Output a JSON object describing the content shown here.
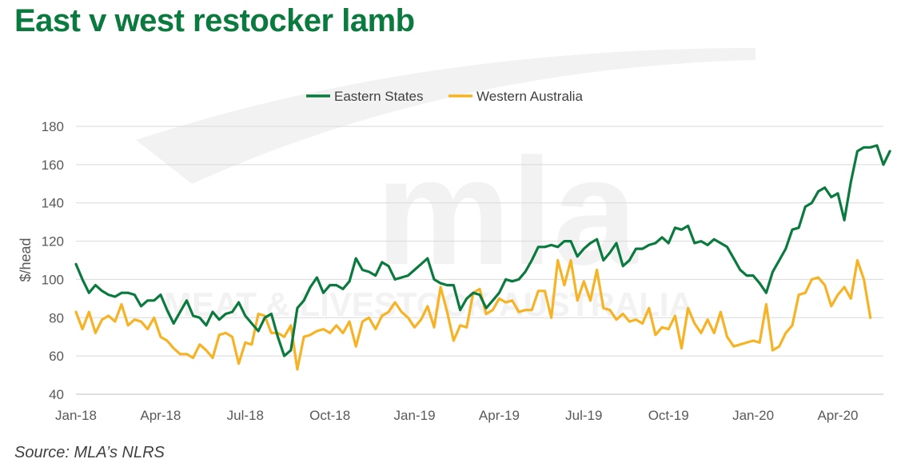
{
  "title": "East v west restocker lamb",
  "source": "Source: MLA’s NLRS",
  "watermark": {
    "logo": "mla",
    "tagline": "MEAT & LIVESTOCK AUSTRALIA"
  },
  "chart_data": {
    "type": "line",
    "ylabel": "$/head",
    "ylim": [
      40,
      180
    ],
    "yticks": [
      40,
      60,
      80,
      100,
      120,
      140,
      160,
      180
    ],
    "grid": true,
    "legend_position": "top-center",
    "x_tick_labels": [
      "Jan-18",
      "Apr-18",
      "Jul-18",
      "Oct-18",
      "Jan-19",
      "Apr-19",
      "Jul-19",
      "Oct-19",
      "Jan-20",
      "Apr-20"
    ],
    "x_tick_weeks": [
      0,
      13,
      26,
      39,
      52,
      65,
      78,
      91,
      104,
      117
    ],
    "x_range_weeks": [
      0,
      124
    ],
    "x_unit": "weekly observations",
    "series": [
      {
        "name": "Eastern States",
        "color": "#0b7a3e",
        "values": [
          108,
          100,
          93,
          97,
          94,
          92,
          91,
          93,
          93,
          92,
          86,
          89,
          89,
          92,
          84,
          77,
          83,
          89,
          81,
          80,
          76,
          83,
          79,
          82,
          83,
          88,
          81,
          77,
          73,
          80,
          82,
          70,
          60,
          63,
          85,
          89,
          96,
          101,
          93,
          97,
          97,
          95,
          99,
          111,
          105,
          104,
          102,
          109,
          107,
          100,
          101,
          102,
          105,
          108,
          111,
          100,
          98,
          97,
          97,
          84,
          90,
          93,
          92,
          85,
          89,
          93,
          100,
          99,
          100,
          104,
          110,
          117,
          117,
          118,
          117,
          120,
          120,
          112,
          116,
          119,
          121,
          110,
          114,
          119,
          107,
          110,
          116,
          116,
          118,
          119,
          122,
          119,
          127,
          126,
          128,
          119,
          120,
          118,
          121,
          119,
          117,
          111,
          105,
          102,
          102,
          98,
          93,
          104,
          110,
          116,
          126,
          127,
          138,
          140,
          146,
          148,
          143,
          145,
          131,
          151,
          167,
          169,
          169,
          170,
          160,
          167
        ]
      },
      {
        "name": "Western Australia",
        "color": "#f5b325",
        "values": [
          83,
          74,
          83,
          72,
          79,
          81,
          78,
          87,
          76,
          79,
          78,
          74,
          80,
          70,
          68,
          64,
          61,
          61,
          59,
          66,
          63,
          59,
          71,
          72,
          70,
          56,
          67,
          66,
          82,
          81,
          72,
          72,
          70,
          76,
          53,
          70,
          71,
          73,
          74,
          72,
          76,
          72,
          78,
          65,
          78,
          80,
          74,
          81,
          83,
          88,
          83,
          80,
          75,
          79,
          86,
          75,
          96,
          83,
          68,
          76,
          75,
          93,
          95,
          82,
          84,
          90,
          88,
          89,
          83,
          84,
          84,
          94,
          94,
          80,
          110,
          97,
          110,
          89,
          99,
          89,
          105,
          85,
          84,
          79,
          82,
          78,
          79,
          77,
          85,
          71,
          75,
          74,
          81,
          64,
          85,
          77,
          72,
          79,
          72,
          83,
          70,
          65,
          66,
          67,
          68,
          67,
          87,
          63,
          65,
          72,
          76,
          92,
          93,
          100,
          101,
          97,
          86,
          92,
          96,
          90,
          110,
          100,
          80
        ]
      }
    ]
  }
}
